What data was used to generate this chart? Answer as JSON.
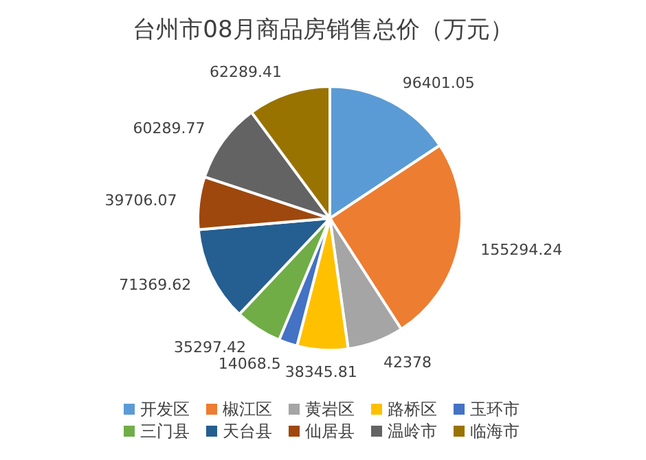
{
  "chart_data": {
    "type": "pie",
    "title": "台州市08月商品房销售总价（万元）",
    "categories": [
      "开发区",
      "椒江区",
      "黄岩区",
      "路桥区",
      "玉环市",
      "三门县",
      "天台县",
      "仙居县",
      "温岭市",
      "临海市"
    ],
    "values": [
      96401.05,
      155294.24,
      42378,
      38345.81,
      14068.5,
      35297.42,
      71369.62,
      39706.07,
      60289.77,
      62289.41
    ],
    "colors": [
      "#5b9bd5",
      "#ed7d31",
      "#a5a5a5",
      "#ffc000",
      "#4472c4",
      "#70ad47",
      "#255e91",
      "#9e480e",
      "#636363",
      "#997300"
    ],
    "data_labels": true,
    "legend": "bottom"
  }
}
